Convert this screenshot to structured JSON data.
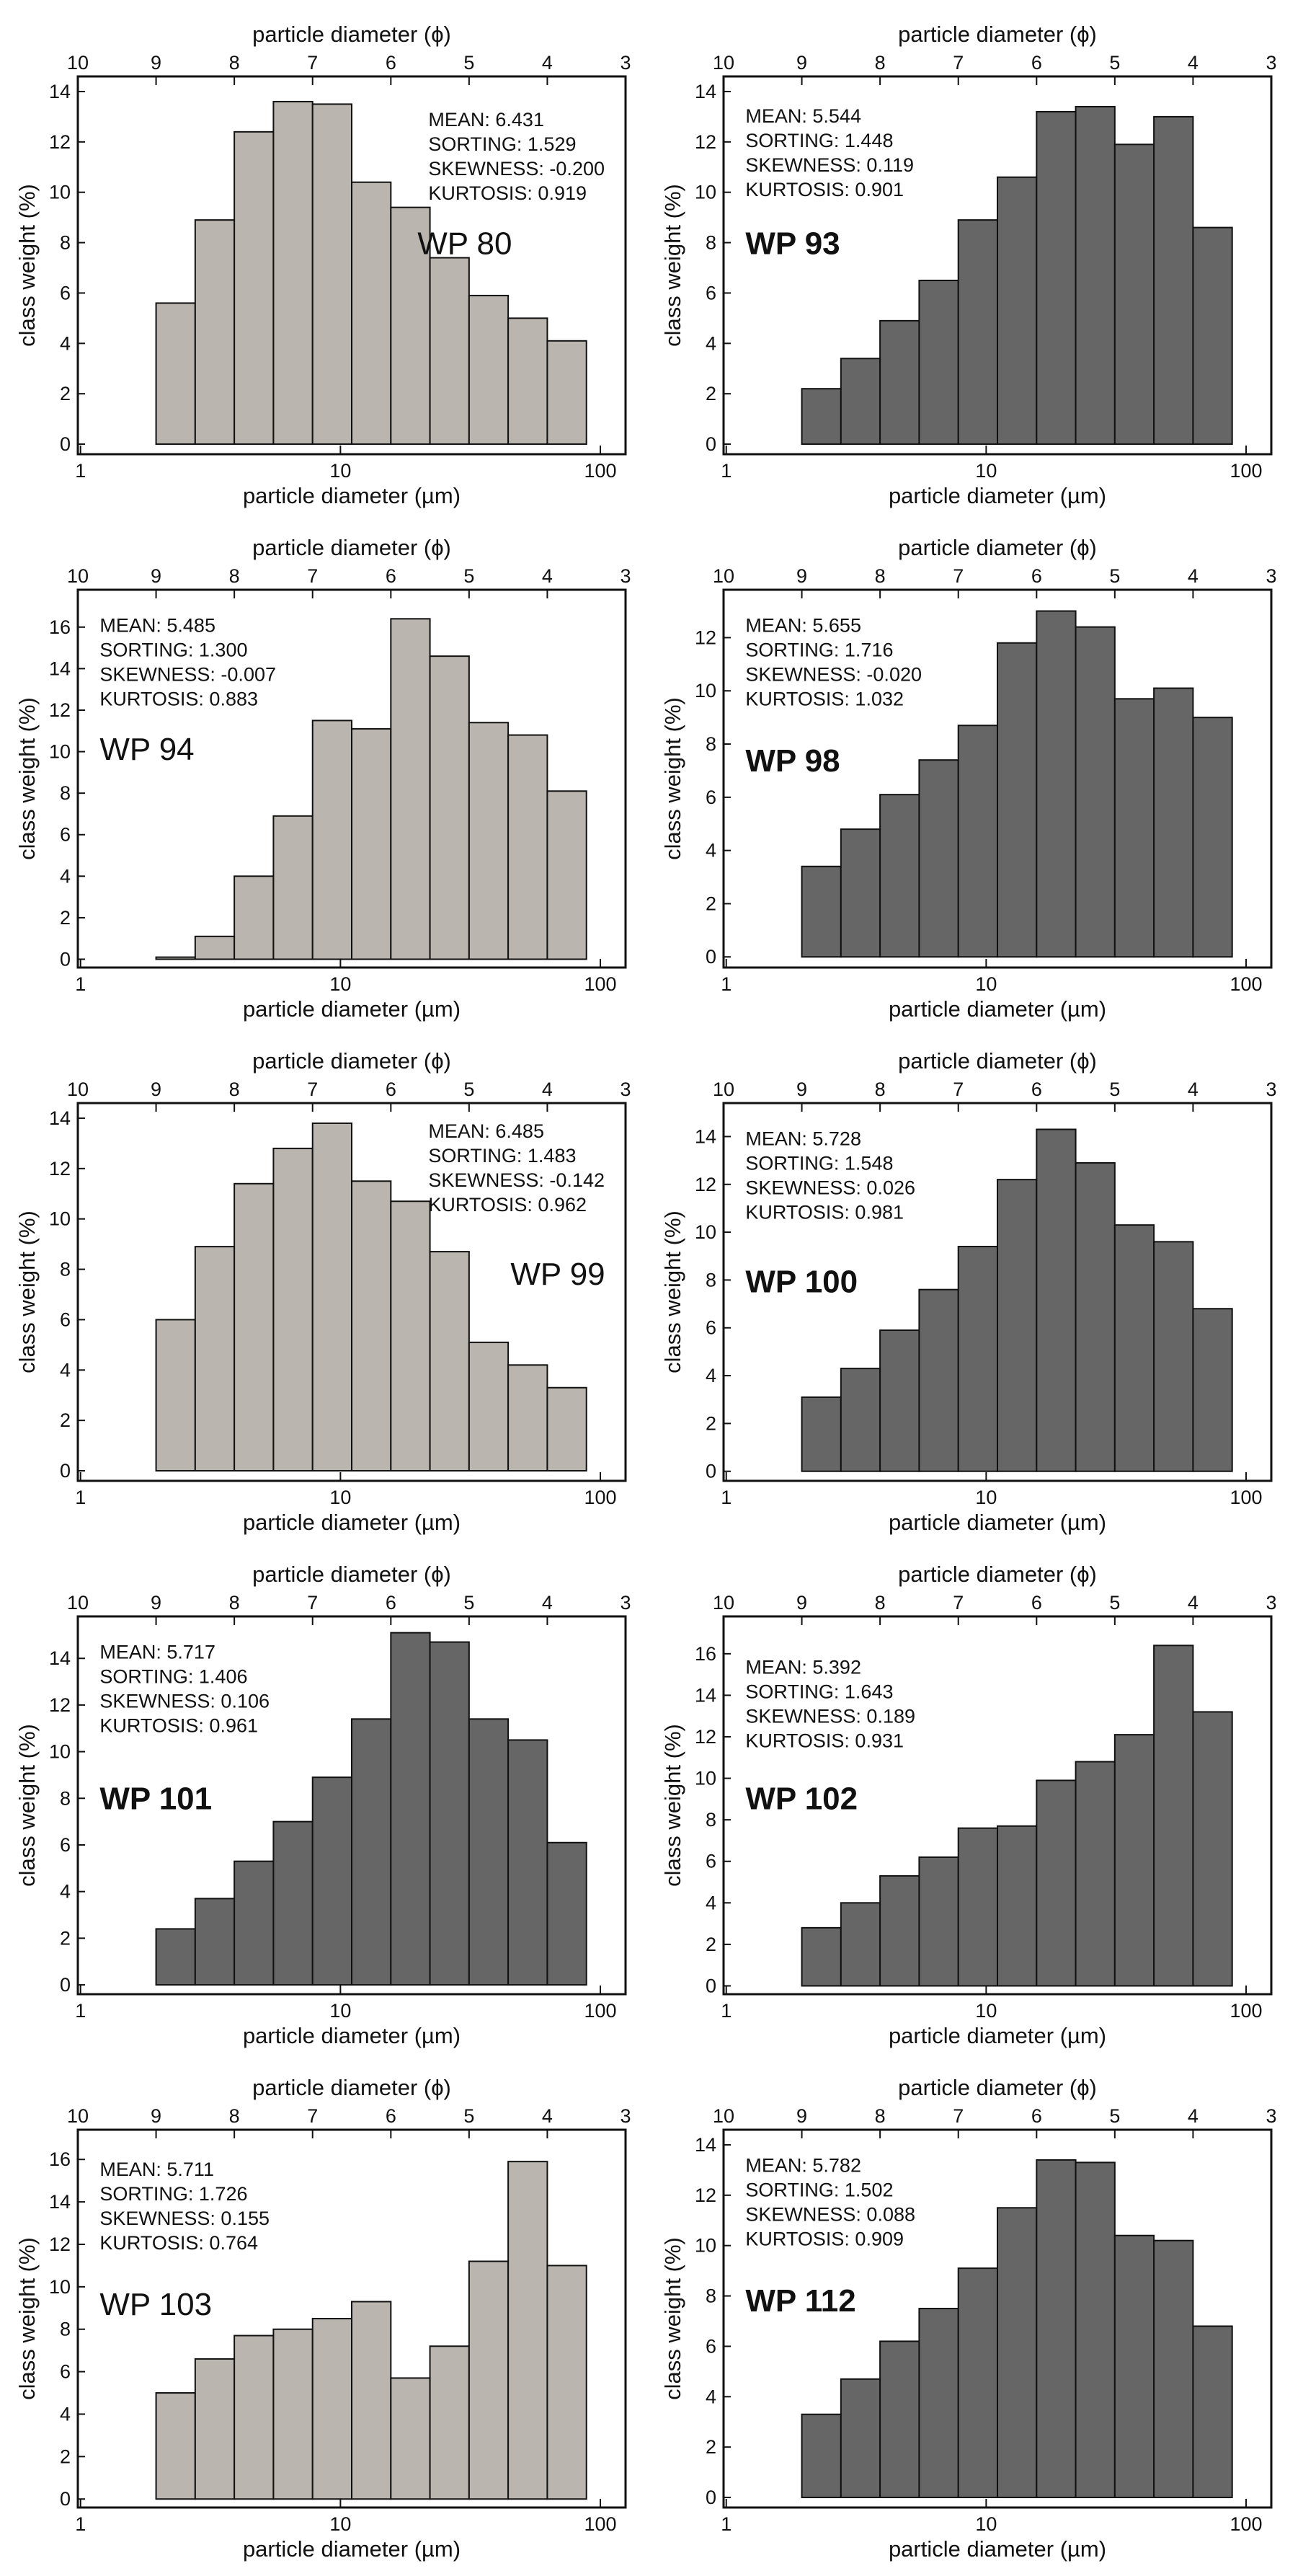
{
  "chart_data": [
    {
      "type": "histogram",
      "title": "WP 80",
      "stats": [
        "MEAN: 6.431",
        "SORTING: 1.529",
        "SKEWNESS: -0.200",
        "KURTOSIS: 0.919"
      ],
      "x_label": "particle diameter (µm)",
      "x2_label": "particle diameter (ϕ)",
      "y_label": "class weight (%)",
      "bins": [
        1.953,
        2.762,
        3.906,
        5.524,
        7.813,
        11.05,
        15.63,
        22.1,
        31.25,
        44.19,
        62.5,
        88.39
      ],
      "values": [
        5.6,
        8.9,
        12.4,
        13.6,
        13.5,
        10.4,
        9.4,
        7.4,
        5.9,
        5.0,
        4.1
      ],
      "color": "#bab5ae",
      "log_x": true,
      "xlim": [
        0.9766,
        125
      ],
      "xticks": [
        1,
        10,
        100
      ],
      "x2ticks": [
        {
          "value": 0.9766,
          "label": "10"
        },
        {
          "value": 1.953,
          "label": "9"
        },
        {
          "value": 3.906,
          "label": "8"
        },
        {
          "value": 7.813,
          "label": "7"
        },
        {
          "value": 15.63,
          "label": "6"
        },
        {
          "value": 31.25,
          "label": "5"
        },
        {
          "value": 62.5,
          "label": "4"
        },
        {
          "value": 125,
          "label": "3"
        }
      ],
      "ylim": [
        -0.4,
        14.6
      ],
      "yticks": [
        0,
        2,
        4,
        6,
        8,
        10,
        12,
        14
      ]
    },
    {
      "type": "histogram",
      "title": "WP 93",
      "stats": [
        "MEAN: 5.544",
        "SORTING: 1.448",
        "SKEWNESS: 0.119",
        "KURTOSIS: 0.901"
      ],
      "x_label": "particle diameter (µm)",
      "x2_label": "particle diameter (ϕ)",
      "y_label": "class weight (%)",
      "bins": [
        1.953,
        2.762,
        3.906,
        5.524,
        7.813,
        11.05,
        15.63,
        22.1,
        31.25,
        44.19,
        62.5,
        88.39
      ],
      "values": [
        2.2,
        3.4,
        4.9,
        6.5,
        8.9,
        10.6,
        13.2,
        13.4,
        11.9,
        13.0,
        8.6
      ],
      "color": "#666666",
      "log_x": true,
      "xlim": [
        0.9766,
        125
      ],
      "xticks": [
        1,
        10,
        100
      ],
      "x2ticks": [
        {
          "value": 0.9766,
          "label": "10"
        },
        {
          "value": 1.953,
          "label": "9"
        },
        {
          "value": 3.906,
          "label": "8"
        },
        {
          "value": 7.813,
          "label": "7"
        },
        {
          "value": 15.63,
          "label": "6"
        },
        {
          "value": 31.25,
          "label": "5"
        },
        {
          "value": 62.5,
          "label": "4"
        },
        {
          "value": 125,
          "label": "3"
        }
      ],
      "ylim": [
        -0.4,
        14.6
      ],
      "yticks": [
        0,
        2,
        4,
        6,
        8,
        10,
        12,
        14
      ]
    },
    {
      "type": "histogram",
      "title": "WP 94",
      "stats": [
        "MEAN: 5.485",
        "SORTING: 1.300",
        "SKEWNESS: -0.007",
        "KURTOSIS: 0.883"
      ],
      "x_label": "particle diameter (µm)",
      "x2_label": "particle diameter (ϕ)",
      "y_label": "class weight (%)",
      "bins": [
        1.953,
        2.762,
        3.906,
        5.524,
        7.813,
        11.05,
        15.63,
        22.1,
        31.25,
        44.19,
        62.5,
        88.39
      ],
      "values": [
        0.1,
        1.1,
        4.0,
        6.9,
        11.5,
        11.1,
        16.4,
        14.6,
        11.4,
        10.8,
        8.1
      ],
      "color": "#bab5ae",
      "log_x": true,
      "xlim": [
        0.9766,
        125
      ],
      "xticks": [
        1,
        10,
        100
      ],
      "x2ticks": [
        {
          "value": 0.9766,
          "label": "10"
        },
        {
          "value": 1.953,
          "label": "9"
        },
        {
          "value": 3.906,
          "label": "8"
        },
        {
          "value": 7.813,
          "label": "7"
        },
        {
          "value": 15.63,
          "label": "6"
        },
        {
          "value": 31.25,
          "label": "5"
        },
        {
          "value": 62.5,
          "label": "4"
        },
        {
          "value": 125,
          "label": "3"
        }
      ],
      "ylim": [
        -0.4,
        17.8
      ],
      "yticks": [
        0,
        2,
        4,
        6,
        8,
        10,
        12,
        14,
        16
      ]
    },
    {
      "type": "histogram",
      "title": "WP 98",
      "stats": [
        "MEAN: 5.655",
        "SORTING: 1.716",
        "SKEWNESS: -0.020",
        "KURTOSIS: 1.032"
      ],
      "x_label": "particle diameter (µm)",
      "x2_label": "particle diameter (ϕ)",
      "y_label": "class weight (%)",
      "bins": [
        1.953,
        2.762,
        3.906,
        5.524,
        7.813,
        11.05,
        15.63,
        22.1,
        31.25,
        44.19,
        62.5,
        88.39
      ],
      "values": [
        3.4,
        4.8,
        6.1,
        7.4,
        8.7,
        11.8,
        13.0,
        12.4,
        9.7,
        10.1,
        9.0
      ],
      "color": "#666666",
      "log_x": true,
      "xlim": [
        0.9766,
        125
      ],
      "xticks": [
        1,
        10,
        100
      ],
      "x2ticks": [
        {
          "value": 0.9766,
          "label": "10"
        },
        {
          "value": 1.953,
          "label": "9"
        },
        {
          "value": 3.906,
          "label": "8"
        },
        {
          "value": 7.813,
          "label": "7"
        },
        {
          "value": 15.63,
          "label": "6"
        },
        {
          "value": 31.25,
          "label": "5"
        },
        {
          "value": 62.5,
          "label": "4"
        },
        {
          "value": 125,
          "label": "3"
        }
      ],
      "ylim": [
        -0.4,
        13.8
      ],
      "yticks": [
        0,
        2,
        4,
        6,
        8,
        10,
        12
      ]
    },
    {
      "type": "histogram",
      "title": "WP 99",
      "stats": [
        "MEAN: 6.485",
        "SORTING: 1.483",
        "SKEWNESS: -0.142",
        "KURTOSIS: 0.962"
      ],
      "x_label": "particle diameter (µm)",
      "x2_label": "particle diameter (ϕ)",
      "y_label": "class weight (%)",
      "bins": [
        1.953,
        2.762,
        3.906,
        5.524,
        7.813,
        11.05,
        15.63,
        22.1,
        31.25,
        44.19,
        62.5,
        88.39
      ],
      "values": [
        6.0,
        8.9,
        11.4,
        12.8,
        13.8,
        11.5,
        10.7,
        8.7,
        5.1,
        4.2,
        3.3
      ],
      "color": "#bab5ae",
      "log_x": true,
      "xlim": [
        0.9766,
        125
      ],
      "xticks": [
        1,
        10,
        100
      ],
      "x2ticks": [
        {
          "value": 0.9766,
          "label": "10"
        },
        {
          "value": 1.953,
          "label": "9"
        },
        {
          "value": 3.906,
          "label": "8"
        },
        {
          "value": 7.813,
          "label": "7"
        },
        {
          "value": 15.63,
          "label": "6"
        },
        {
          "value": 31.25,
          "label": "5"
        },
        {
          "value": 62.5,
          "label": "4"
        },
        {
          "value": 125,
          "label": "3"
        }
      ],
      "ylim": [
        -0.4,
        14.6
      ],
      "yticks": [
        0,
        2,
        4,
        6,
        8,
        10,
        12,
        14
      ]
    },
    {
      "type": "histogram",
      "title": "WP 100",
      "stats": [
        "MEAN: 5.728",
        "SORTING: 1.548",
        "SKEWNESS: 0.026",
        "KURTOSIS: 0.981"
      ],
      "x_label": "particle diameter (µm)",
      "x2_label": "particle diameter (ϕ)",
      "y_label": "class weight (%)",
      "bins": [
        1.953,
        2.762,
        3.906,
        5.524,
        7.813,
        11.05,
        15.63,
        22.1,
        31.25,
        44.19,
        62.5,
        88.39
      ],
      "values": [
        3.1,
        4.3,
        5.9,
        7.6,
        9.4,
        12.2,
        14.3,
        12.9,
        10.3,
        9.6,
        6.8
      ],
      "color": "#666666",
      "log_x": true,
      "xlim": [
        0.9766,
        125
      ],
      "xticks": [
        1,
        10,
        100
      ],
      "x2ticks": [
        {
          "value": 0.9766,
          "label": "10"
        },
        {
          "value": 1.953,
          "label": "9"
        },
        {
          "value": 3.906,
          "label": "8"
        },
        {
          "value": 7.813,
          "label": "7"
        },
        {
          "value": 15.63,
          "label": "6"
        },
        {
          "value": 31.25,
          "label": "5"
        },
        {
          "value": 62.5,
          "label": "4"
        },
        {
          "value": 125,
          "label": "3"
        }
      ],
      "ylim": [
        -0.4,
        15.4
      ],
      "yticks": [
        0,
        2,
        4,
        6,
        8,
        10,
        12,
        14
      ]
    },
    {
      "type": "histogram",
      "title": "WP 101",
      "stats": [
        "MEAN: 5.717",
        "SORTING: 1.406",
        "SKEWNESS: 0.106",
        "KURTOSIS: 0.961"
      ],
      "x_label": "particle diameter (µm)",
      "x2_label": "particle diameter (ϕ)",
      "y_label": "class weight (%)",
      "bins": [
        1.953,
        2.762,
        3.906,
        5.524,
        7.813,
        11.05,
        15.63,
        22.1,
        31.25,
        44.19,
        62.5,
        88.39
      ],
      "values": [
        2.4,
        3.7,
        5.3,
        7.0,
        8.9,
        11.4,
        15.1,
        14.7,
        11.4,
        10.5,
        6.1
      ],
      "color": "#666666",
      "log_x": true,
      "xlim": [
        0.9766,
        125
      ],
      "xticks": [
        1,
        10,
        100
      ],
      "x2ticks": [
        {
          "value": 0.9766,
          "label": "10"
        },
        {
          "value": 1.953,
          "label": "9"
        },
        {
          "value": 3.906,
          "label": "8"
        },
        {
          "value": 7.813,
          "label": "7"
        },
        {
          "value": 15.63,
          "label": "6"
        },
        {
          "value": 31.25,
          "label": "5"
        },
        {
          "value": 62.5,
          "label": "4"
        },
        {
          "value": 125,
          "label": "3"
        }
      ],
      "ylim": [
        -0.4,
        15.8
      ],
      "yticks": [
        0,
        2,
        4,
        6,
        8,
        10,
        12,
        14
      ]
    },
    {
      "type": "histogram",
      "title": "WP 102",
      "stats": [
        "MEAN: 5.392",
        "SORTING: 1.643",
        "SKEWNESS: 0.189",
        "KURTOSIS: 0.931"
      ],
      "x_label": "particle diameter (µm)",
      "x2_label": "particle diameter (ϕ)",
      "y_label": "class weight (%)",
      "bins": [
        1.953,
        2.762,
        3.906,
        5.524,
        7.813,
        11.05,
        15.63,
        22.1,
        31.25,
        44.19,
        62.5,
        88.39
      ],
      "values": [
        2.8,
        4.0,
        5.3,
        6.2,
        7.6,
        7.7,
        9.9,
        10.8,
        12.1,
        16.4,
        13.2
      ],
      "color": "#666666",
      "log_x": true,
      "xlim": [
        0.9766,
        125
      ],
      "xticks": [
        1,
        10,
        100
      ],
      "x2ticks": [
        {
          "value": 0.9766,
          "label": "10"
        },
        {
          "value": 1.953,
          "label": "9"
        },
        {
          "value": 3.906,
          "label": "8"
        },
        {
          "value": 7.813,
          "label": "7"
        },
        {
          "value": 15.63,
          "label": "6"
        },
        {
          "value": 31.25,
          "label": "5"
        },
        {
          "value": 62.5,
          "label": "4"
        },
        {
          "value": 125,
          "label": "3"
        }
      ],
      "ylim": [
        -0.4,
        17.8
      ],
      "yticks": [
        0,
        2,
        4,
        6,
        8,
        10,
        12,
        14,
        16
      ]
    },
    {
      "type": "histogram",
      "title": "WP 103",
      "stats": [
        "MEAN: 5.711",
        "SORTING: 1.726",
        "SKEWNESS: 0.155",
        "KURTOSIS: 0.764"
      ],
      "x_label": "particle diameter (µm)",
      "x2_label": "particle diameter (ϕ)",
      "y_label": "class weight (%)",
      "bins": [
        1.953,
        2.762,
        3.906,
        5.524,
        7.813,
        11.05,
        15.63,
        22.1,
        31.25,
        44.19,
        62.5,
        88.39
      ],
      "values": [
        5.0,
        6.6,
        7.7,
        8.0,
        8.5,
        9.3,
        5.7,
        7.2,
        11.2,
        15.9,
        11.0
      ],
      "color": "#bab5ae",
      "log_x": true,
      "xlim": [
        0.9766,
        125
      ],
      "xticks": [
        1,
        10,
        100
      ],
      "x2ticks": [
        {
          "value": 0.9766,
          "label": "10"
        },
        {
          "value": 1.953,
          "label": "9"
        },
        {
          "value": 3.906,
          "label": "8"
        },
        {
          "value": 7.813,
          "label": "7"
        },
        {
          "value": 15.63,
          "label": "6"
        },
        {
          "value": 31.25,
          "label": "5"
        },
        {
          "value": 62.5,
          "label": "4"
        },
        {
          "value": 125,
          "label": "3"
        }
      ],
      "ylim": [
        -0.4,
        17.4
      ],
      "yticks": [
        0,
        2,
        4,
        6,
        8,
        10,
        12,
        14,
        16
      ]
    },
    {
      "type": "histogram",
      "title": "WP 112",
      "stats": [
        "MEAN: 5.782",
        "SORTING: 1.502",
        "SKEWNESS: 0.088",
        "KURTOSIS: 0.909"
      ],
      "x_label": "particle diameter (µm)",
      "x2_label": "particle diameter (ϕ)",
      "y_label": "class weight (%)",
      "bins": [
        1.953,
        2.762,
        3.906,
        5.524,
        7.813,
        11.05,
        15.63,
        22.1,
        31.25,
        44.19,
        62.5,
        88.39
      ],
      "values": [
        3.3,
        4.7,
        6.2,
        7.5,
        9.1,
        11.5,
        13.4,
        13.3,
        10.4,
        10.2,
        6.8
      ],
      "color": "#666666",
      "log_x": true,
      "xlim": [
        0.9766,
        125
      ],
      "xticks": [
        1,
        10,
        100
      ],
      "x2ticks": [
        {
          "value": 0.9766,
          "label": "10"
        },
        {
          "value": 1.953,
          "label": "9"
        },
        {
          "value": 3.906,
          "label": "8"
        },
        {
          "value": 7.813,
          "label": "7"
        },
        {
          "value": 15.63,
          "label": "6"
        },
        {
          "value": 31.25,
          "label": "5"
        },
        {
          "value": 62.5,
          "label": "4"
        },
        {
          "value": 125,
          "label": "3"
        }
      ],
      "ylim": [
        -0.4,
        14.6
      ],
      "yticks": [
        0,
        2,
        4,
        6,
        8,
        10,
        12,
        14
      ]
    }
  ]
}
